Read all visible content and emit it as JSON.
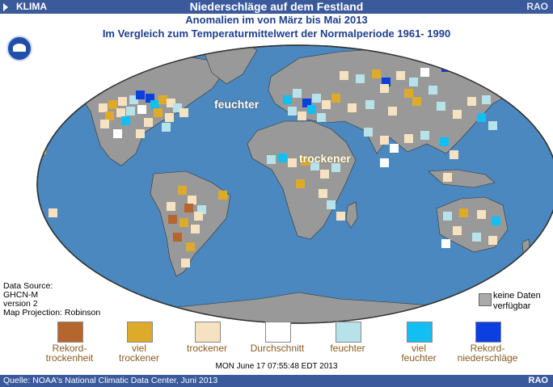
{
  "header": {
    "left_label": "KLIMA",
    "title": "Niederschläge auf dem Festland",
    "right_label": "RAO"
  },
  "subtitle": "Anomalien im von März bis Mai 2013",
  "subtitle2": "Im Vergleich zum Temperaturmittelwert der Normalperiode 1961- 1990",
  "map_labels": {
    "wet": "feuchter",
    "dry": "trockener"
  },
  "data_source": {
    "line1": "Data Source:",
    "line2": "GHCN-M",
    "line3": "version 2",
    "line4": "Map Projection: Robinson"
  },
  "no_data": {
    "line1": "keine Daten",
    "line2": "verfügbar",
    "color": "#aaaaaa"
  },
  "legend": [
    {
      "line1": "Rekord-",
      "line2": "trockenheit",
      "color": "#b5652e"
    },
    {
      "line1": "viel",
      "line2": "trockener",
      "color": "#deaa2a"
    },
    {
      "line1": "trockener",
      "line2": "",
      "color": "#f6e2c0"
    },
    {
      "line1": "Durchschnitt",
      "line2": "",
      "color": "#ffffff"
    },
    {
      "line1": "feuchter",
      "line2": "",
      "color": "#b8e2ea"
    },
    {
      "line1": "viel",
      "line2": "feuchter",
      "color": "#12bff2"
    },
    {
      "line1": "Rekord-",
      "line2": "niederschläge",
      "color": "#0b3fe0"
    }
  ],
  "timestamp": "MON June 17 07:55:48 EDT 2013",
  "footer": {
    "source": "Quelle: NOAA's National Climatic Data Center, Juni 2013",
    "right_label": "RAO"
  },
  "colors": {
    "ocean": "#4a88bf",
    "land": "#999999",
    "bar": "#3a5a9c"
  },
  "icons": [
    "noaa-logo-icon",
    "play-triangle-icon"
  ]
}
